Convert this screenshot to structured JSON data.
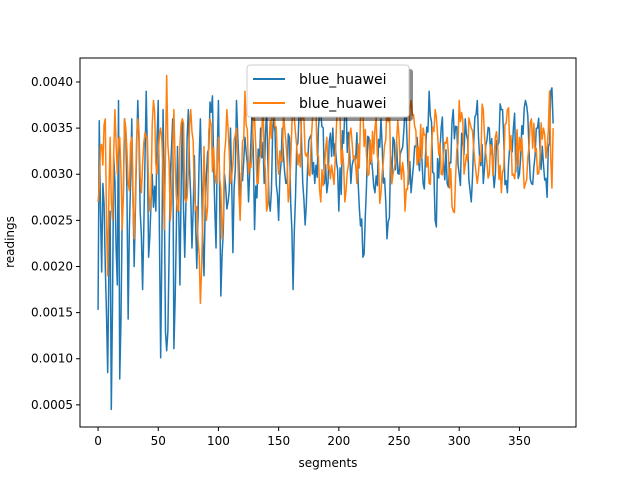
{
  "chart_data": {
    "type": "line",
    "title": "",
    "xlabel": "segments",
    "ylabel": "readings",
    "xlim": [
      -15,
      397
    ],
    "ylim": [
      0.00026,
      0.00426
    ],
    "x_ticks": [
      0,
      50,
      100,
      150,
      200,
      250,
      300,
      350
    ],
    "y_ticks": [
      0.0005,
      0.001,
      0.0015,
      0.002,
      0.0025,
      0.003,
      0.0035,
      0.004
    ],
    "y_tick_labels": [
      "0.0005",
      "0.0010",
      "0.0015",
      "0.0020",
      "0.0025",
      "0.0030",
      "0.0035",
      "0.0040"
    ],
    "grid": false,
    "legend_position": "top-center",
    "n_points": 379,
    "series": [
      {
        "name": "blue_huawei",
        "color": "#1f77b4",
        "keypoints": [
          [
            0,
            0.00153
          ],
          [
            1,
            0.00358
          ],
          [
            3,
            0.00194
          ],
          [
            4,
            0.0029
          ],
          [
            6,
            0.002
          ],
          [
            8,
            0.00085
          ],
          [
            10,
            0.0026
          ],
          [
            11,
            0.00045
          ],
          [
            13,
            0.0032
          ],
          [
            16,
            0.0018
          ],
          [
            17,
            0.0038
          ],
          [
            18,
            0.00078
          ],
          [
            20,
            0.0025
          ],
          [
            22,
            0.0036
          ],
          [
            24,
            0.0028
          ],
          [
            25,
            0.00143
          ],
          [
            28,
            0.0036
          ],
          [
            30,
            0.002
          ],
          [
            33,
            0.0038
          ],
          [
            35,
            0.0026
          ],
          [
            37,
            0.00175
          ],
          [
            40,
            0.0039
          ],
          [
            42,
            0.0021
          ],
          [
            45,
            0.003
          ],
          [
            48,
            0.0026
          ],
          [
            50,
            0.0038
          ],
          [
            52,
            0.00101
          ],
          [
            54,
            0.0037
          ],
          [
            56,
            0.00129
          ],
          [
            58,
            0.0013
          ],
          [
            60,
            0.003
          ],
          [
            62,
            0.0036
          ],
          [
            63,
            0.00111
          ],
          [
            66,
            0.0033
          ],
          [
            68,
            0.0018
          ],
          [
            70,
            0.0036
          ],
          [
            72,
            0.0021
          ],
          [
            75,
            0.0037
          ],
          [
            78,
            0.0022
          ],
          [
            80,
            0.0032
          ],
          [
            82,
            0.00198
          ],
          [
            85,
            0.0036
          ],
          [
            88,
            0.0019
          ],
          [
            90,
            0.003
          ],
          [
            95,
            0.00385
          ],
          [
            98,
            0.0022
          ],
          [
            100,
            0.0038
          ],
          [
            102,
            0.00168
          ],
          [
            105,
            0.003
          ],
          [
            108,
            0.0027
          ],
          [
            110,
            0.0035
          ],
          [
            112,
            0.00215
          ],
          [
            115,
            0.0038
          ],
          [
            118,
            0.0026
          ],
          [
            122,
            0.0034
          ],
          [
            125,
            0.0027
          ],
          [
            128,
            0.0037
          ],
          [
            130,
            0.0024
          ],
          [
            135,
            0.0035
          ],
          [
            138,
            0.0029
          ],
          [
            140,
            0.0037
          ],
          [
            143,
            0.0026
          ],
          [
            146,
            0.0036
          ],
          [
            150,
            0.0025
          ],
          [
            153,
            0.0035
          ],
          [
            156,
            0.0029
          ],
          [
            159,
            0.0034
          ],
          [
            162,
            0.00175
          ],
          [
            165,
            0.0033
          ],
          [
            168,
            0.0038
          ],
          [
            172,
            0.00245
          ],
          [
            176,
            0.0034
          ],
          [
            180,
            0.0029
          ],
          [
            185,
            0.00365
          ],
          [
            190,
            0.0028
          ],
          [
            195,
            0.0035
          ],
          [
            200,
            0.0026
          ],
          [
            205,
            0.0037
          ],
          [
            210,
            0.0029
          ],
          [
            215,
            0.00345
          ],
          [
            220,
            0.0021
          ],
          [
            225,
            0.0034
          ],
          [
            230,
            0.0028
          ],
          [
            235,
            0.0036
          ],
          [
            240,
            0.0023
          ],
          [
            245,
            0.0034
          ],
          [
            250,
            0.003
          ],
          [
            255,
            0.0037
          ],
          [
            260,
            0.0028
          ],
          [
            265,
            0.0034
          ],
          [
            270,
            0.0029
          ],
          [
            275,
            0.0039
          ],
          [
            280,
            0.0025
          ],
          [
            285,
            0.0035
          ],
          [
            290,
            0.0029
          ],
          [
            295,
            0.0037
          ],
          [
            300,
            0.003
          ],
          [
            305,
            0.0036
          ],
          [
            310,
            0.0027
          ],
          [
            315,
            0.0038
          ],
          [
            320,
            0.0029
          ],
          [
            325,
            0.0035
          ],
          [
            330,
            0.003
          ],
          [
            335,
            0.0037
          ],
          [
            340,
            0.0028
          ],
          [
            345,
            0.0035
          ],
          [
            350,
            0.003
          ],
          [
            355,
            0.0038
          ],
          [
            360,
            0.0029
          ],
          [
            365,
            0.0035
          ],
          [
            370,
            0.0031
          ],
          [
            373,
            0.00275
          ],
          [
            376,
            0.0039
          ],
          [
            378,
            0.00355
          ]
        ]
      },
      {
        "name": "blue_huawei",
        "color": "#ff7f0e",
        "keypoints": [
          [
            0,
            0.0027
          ],
          [
            2,
            0.0033
          ],
          [
            4,
            0.0031
          ],
          [
            6,
            0.0036
          ],
          [
            8,
            0.0019
          ],
          [
            10,
            0.0034
          ],
          [
            12,
            0.0025
          ],
          [
            14,
            0.0037
          ],
          [
            16,
            0.003
          ],
          [
            18,
            0.0034
          ],
          [
            20,
            0.0024
          ],
          [
            22,
            0.0036
          ],
          [
            25,
            0.0029
          ],
          [
            28,
            0.0034
          ],
          [
            30,
            0.0023
          ],
          [
            33,
            0.0036
          ],
          [
            36,
            0.0028
          ],
          [
            40,
            0.0034
          ],
          [
            43,
            0.0026
          ],
          [
            46,
            0.0038
          ],
          [
            49,
            0.003
          ],
          [
            52,
            0.0035
          ],
          [
            55,
            0.0024
          ],
          [
            57,
            0.00407
          ],
          [
            60,
            0.0025
          ],
          [
            63,
            0.0037
          ],
          [
            66,
            0.0026
          ],
          [
            70,
            0.0036
          ],
          [
            73,
            0.0027
          ],
          [
            77,
            0.0037
          ],
          [
            80,
            0.0028
          ],
          [
            83,
            0.0023
          ],
          [
            85,
            0.0016
          ],
          [
            88,
            0.0033
          ],
          [
            90,
            0.0025
          ],
          [
            93,
            0.0036
          ],
          [
            97,
            0.003
          ],
          [
            100,
            0.0034
          ],
          [
            103,
            0.0023
          ],
          [
            107,
            0.0037
          ],
          [
            110,
            0.0029
          ],
          [
            115,
            0.0035
          ],
          [
            118,
            0.0025
          ],
          [
            122,
            0.0039
          ],
          [
            125,
            0.003
          ],
          [
            130,
            0.0036
          ],
          [
            133,
            0.0029
          ],
          [
            137,
            0.0038
          ],
          [
            140,
            0.0026
          ],
          [
            145,
            0.0039
          ],
          [
            150,
            0.003
          ],
          [
            155,
            0.0035
          ],
          [
            158,
            0.0027
          ],
          [
            162,
            0.0038
          ],
          [
            166,
            0.0031
          ],
          [
            170,
            0.0036
          ],
          [
            175,
            0.003
          ],
          [
            180,
            0.0037
          ],
          [
            185,
            0.0027
          ],
          [
            190,
            0.0034
          ],
          [
            195,
            0.003
          ],
          [
            200,
            0.0038
          ],
          [
            205,
            0.0027
          ],
          [
            210,
            0.0035
          ],
          [
            215,
            0.0029
          ],
          [
            220,
            0.0037
          ],
          [
            225,
            0.003
          ],
          [
            230,
            0.0035
          ],
          [
            235,
            0.0028
          ],
          [
            240,
            0.0038
          ],
          [
            245,
            0.003
          ],
          [
            250,
            0.0034
          ],
          [
            255,
            0.0026
          ],
          [
            260,
            0.0038
          ],
          [
            265,
            0.0031
          ],
          [
            270,
            0.0035
          ],
          [
            275,
            0.0029
          ],
          [
            280,
            0.0037
          ],
          [
            285,
            0.003
          ],
          [
            290,
            0.0034
          ],
          [
            295,
            0.0026
          ],
          [
            300,
            0.0038
          ],
          [
            305,
            0.0031
          ],
          [
            310,
            0.0035
          ],
          [
            315,
            0.0029
          ],
          [
            320,
            0.0037
          ],
          [
            325,
            0.003
          ],
          [
            330,
            0.0034
          ],
          [
            335,
            0.0028
          ],
          [
            340,
            0.0037
          ],
          [
            345,
            0.003
          ],
          [
            350,
            0.0034
          ],
          [
            355,
            0.0029
          ],
          [
            360,
            0.0036
          ],
          [
            365,
            0.003
          ],
          [
            370,
            0.0035
          ],
          [
            373,
            0.0033
          ],
          [
            375,
            0.0039
          ],
          [
            377,
            0.00285
          ],
          [
            378,
            0.0035
          ]
        ]
      }
    ]
  }
}
